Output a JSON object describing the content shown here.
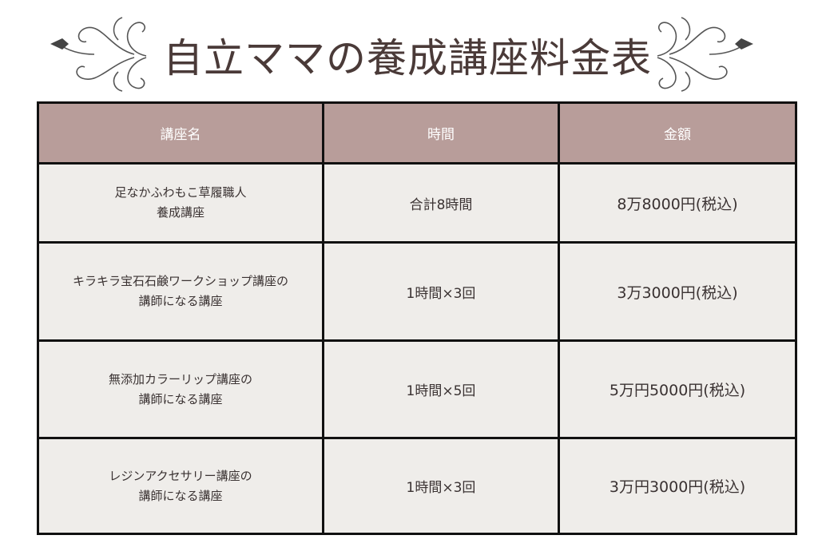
{
  "title": "自立ママの養成講座料金表",
  "table": {
    "headers": [
      "講座名",
      "時間",
      "金額"
    ],
    "rows": [
      {
        "name_line1": "足なかふわもこ草履職人",
        "name_line2": "養成講座",
        "time": "合計8時間",
        "price": "8万8000円(税込)"
      },
      {
        "name_line1": "キラキラ宝石石鹸ワークショップ講座の",
        "name_line2": "講師になる講座",
        "time": "1時間×3回",
        "price": "3万3000円(税込)"
      },
      {
        "name_line1": "無添加カラーリップ講座の",
        "name_line2": "講師になる講座",
        "time": "1時間×5回",
        "price": "5万円5000円(税込)"
      },
      {
        "name_line1": "レジンアクセサリー講座の",
        "name_line2": "講師になる講座",
        "time": "1時間×3回",
        "price": "3万円3000円(税込)"
      }
    ]
  },
  "colors": {
    "header_bg": "#b89d9a",
    "title": "#4a3a38",
    "cell_bg": "#efedea"
  }
}
